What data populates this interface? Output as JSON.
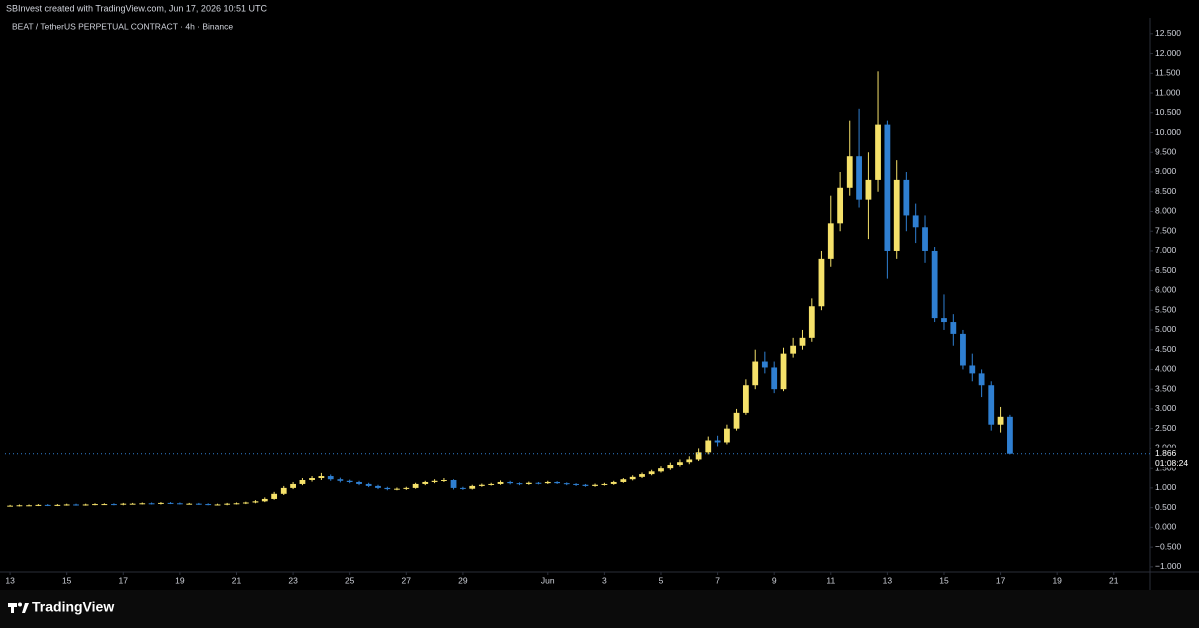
{
  "header": {
    "credit": "SBInvest created with TradingView.com, Jun 17, 2026 10:51 UTC"
  },
  "footer": {
    "brand": "TradingView"
  },
  "chart_data": {
    "type": "candlestick",
    "title": "BEAT / TetherUS PERPETUAL CONTRACT · 4h · Binance",
    "up_color": "#f5e16a",
    "down_color": "#2f7fd1",
    "x": [
      0,
      0.33,
      0.67,
      1,
      1.33,
      1.67,
      2,
      2.33,
      2.67,
      3,
      3.33,
      3.67,
      4,
      4.33,
      4.67,
      5,
      5.33,
      5.67,
      6,
      6.33,
      6.67,
      7,
      7.33,
      7.67,
      8,
      8.33,
      8.67,
      9,
      9.33,
      9.67,
      10,
      10.33,
      10.67,
      11,
      11.33,
      11.67,
      12,
      12.33,
      12.67,
      13,
      13.33,
      13.67,
      14,
      14.33,
      14.67,
      15,
      15.33,
      15.67,
      16,
      16.33,
      16.67,
      17,
      17.33,
      17.67,
      18,
      18.33,
      18.67,
      19,
      19.33,
      19.67,
      20,
      20.33,
      20.67,
      21,
      21.33,
      21.67,
      22,
      22.33,
      22.67,
      23,
      23.33,
      23.67,
      24,
      24.33,
      24.67,
      25,
      25.33,
      25.67,
      26,
      26.33,
      26.67,
      27,
      27.33,
      27.67,
      28,
      28.33,
      28.67,
      29,
      29.33,
      29.67,
      30,
      30.33,
      30.67,
      31,
      31.33,
      31.67,
      32,
      32.33,
      32.67,
      33,
      33.33,
      33.67,
      34,
      34.33,
      34.67,
      35,
      35.33
    ],
    "open": [
      0.55,
      0.55,
      0.56,
      0.56,
      0.57,
      0.56,
      0.57,
      0.58,
      0.57,
      0.58,
      0.59,
      0.59,
      0.58,
      0.6,
      0.6,
      0.61,
      0.6,
      0.62,
      0.61,
      0.6,
      0.6,
      0.59,
      0.58,
      0.58,
      0.6,
      0.61,
      0.63,
      0.66,
      0.72,
      0.85,
      1.0,
      1.1,
      1.2,
      1.25,
      1.3,
      1.22,
      1.18,
      1.15,
      1.1,
      1.05,
      1.0,
      0.97,
      0.98,
      1.0,
      1.1,
      1.15,
      1.18,
      1.2,
      1.0,
      0.98,
      1.05,
      1.08,
      1.1,
      1.15,
      1.12,
      1.1,
      1.13,
      1.12,
      1.15,
      1.12,
      1.1,
      1.08,
      1.05,
      1.08,
      1.1,
      1.15,
      1.22,
      1.28,
      1.35,
      1.42,
      1.5,
      1.58,
      1.65,
      1.72,
      1.9,
      2.2,
      2.15,
      2.5,
      2.9,
      3.6,
      4.2,
      4.05,
      3.5,
      4.4,
      4.6,
      4.8,
      5.6,
      6.8,
      7.7,
      8.6,
      9.4,
      8.3,
      8.8,
      10.2,
      7.0,
      8.8,
      7.9,
      7.6,
      7.0,
      5.3,
      5.2,
      4.9,
      4.1,
      3.9,
      3.6,
      2.6,
      2.8
    ],
    "high": [
      0.57,
      0.58,
      0.58,
      0.59,
      0.59,
      0.59,
      0.6,
      0.6,
      0.6,
      0.61,
      0.61,
      0.61,
      0.62,
      0.62,
      0.63,
      0.63,
      0.64,
      0.64,
      0.63,
      0.62,
      0.62,
      0.61,
      0.6,
      0.62,
      0.63,
      0.65,
      0.69,
      0.76,
      0.9,
      1.05,
      1.15,
      1.25,
      1.3,
      1.38,
      1.34,
      1.26,
      1.21,
      1.18,
      1.13,
      1.08,
      1.03,
      1.01,
      1.03,
      1.13,
      1.18,
      1.22,
      1.25,
      1.22,
      1.03,
      1.08,
      1.11,
      1.13,
      1.19,
      1.18,
      1.14,
      1.16,
      1.15,
      1.18,
      1.17,
      1.14,
      1.12,
      1.1,
      1.11,
      1.13,
      1.18,
      1.25,
      1.32,
      1.39,
      1.46,
      1.55,
      1.64,
      1.72,
      1.8,
      2.0,
      2.3,
      2.32,
      2.6,
      3.0,
      3.75,
      4.5,
      4.45,
      4.2,
      4.55,
      4.8,
      5.0,
      5.8,
      7.0,
      8.4,
      9.0,
      10.3,
      10.6,
      9.5,
      11.55,
      10.3,
      9.3,
      9.0,
      8.2,
      7.9,
      7.1,
      5.9,
      5.4,
      5.0,
      4.4,
      4.0,
      3.7,
      3.05,
      2.85
    ],
    "low": [
      0.53,
      0.53,
      0.54,
      0.54,
      0.54,
      0.54,
      0.55,
      0.55,
      0.55,
      0.56,
      0.57,
      0.56,
      0.56,
      0.58,
      0.58,
      0.58,
      0.58,
      0.59,
      0.58,
      0.58,
      0.57,
      0.56,
      0.56,
      0.56,
      0.58,
      0.59,
      0.61,
      0.64,
      0.7,
      0.82,
      0.97,
      1.07,
      1.16,
      1.2,
      1.18,
      1.14,
      1.12,
      1.07,
      1.02,
      0.97,
      0.94,
      0.94,
      0.95,
      0.98,
      1.07,
      1.12,
      1.15,
      0.96,
      0.95,
      0.96,
      1.03,
      1.06,
      1.08,
      1.09,
      1.07,
      1.08,
      1.09,
      1.1,
      1.1,
      1.07,
      1.05,
      1.03,
      1.03,
      1.06,
      1.08,
      1.13,
      1.19,
      1.25,
      1.32,
      1.39,
      1.46,
      1.54,
      1.6,
      1.68,
      1.85,
      2.05,
      2.1,
      2.45,
      2.85,
      3.5,
      3.9,
      3.4,
      3.45,
      4.3,
      4.5,
      4.7,
      5.5,
      6.6,
      7.5,
      8.4,
      8.1,
      7.3,
      8.5,
      6.3,
      6.8,
      7.5,
      7.2,
      6.7,
      5.2,
      5.0,
      4.6,
      4.0,
      3.7,
      3.3,
      2.45,
      2.4,
      1.85
    ],
    "close": [
      0.55,
      0.56,
      0.56,
      0.57,
      0.56,
      0.57,
      0.58,
      0.57,
      0.58,
      0.59,
      0.59,
      0.58,
      0.6,
      0.6,
      0.61,
      0.6,
      0.62,
      0.61,
      0.6,
      0.6,
      0.59,
      0.58,
      0.58,
      0.6,
      0.61,
      0.63,
      0.66,
      0.72,
      0.85,
      1.0,
      1.1,
      1.2,
      1.25,
      1.3,
      1.22,
      1.18,
      1.15,
      1.1,
      1.05,
      1.0,
      0.97,
      0.98,
      1.0,
      1.1,
      1.15,
      1.18,
      1.2,
      1.0,
      0.98,
      1.05,
      1.08,
      1.1,
      1.15,
      1.12,
      1.1,
      1.13,
      1.12,
      1.15,
      1.12,
      1.1,
      1.08,
      1.05,
      1.08,
      1.1,
      1.15,
      1.22,
      1.28,
      1.35,
      1.42,
      1.5,
      1.58,
      1.65,
      1.72,
      1.9,
      2.2,
      2.15,
      2.5,
      2.9,
      3.6,
      4.2,
      4.05,
      3.5,
      4.4,
      4.6,
      4.8,
      5.6,
      6.8,
      7.7,
      8.6,
      9.4,
      8.3,
      8.8,
      10.2,
      7.0,
      8.8,
      7.9,
      7.6,
      7.0,
      5.3,
      5.2,
      4.9,
      4.1,
      3.9,
      3.6,
      2.6,
      2.8,
      1.866
    ],
    "last_price": 1.866,
    "countdown": "01:08:24",
    "xlim": [
      -0.18,
      40.28
    ],
    "xticks": [
      {
        "value": 0,
        "label": "13"
      },
      {
        "value": 2,
        "label": "15"
      },
      {
        "value": 4,
        "label": "17"
      },
      {
        "value": 6,
        "label": "19"
      },
      {
        "value": 8,
        "label": "21"
      },
      {
        "value": 10,
        "label": "23"
      },
      {
        "value": 12,
        "label": "25"
      },
      {
        "value": 14,
        "label": "27"
      },
      {
        "value": 16,
        "label": "29"
      },
      {
        "value": 19,
        "label": "Jun"
      },
      {
        "value": 21,
        "label": "3"
      },
      {
        "value": 23,
        "label": "5"
      },
      {
        "value": 25,
        "label": "7"
      },
      {
        "value": 27,
        "label": "9"
      },
      {
        "value": 29,
        "label": "11"
      },
      {
        "value": 31,
        "label": "13"
      },
      {
        "value": 33,
        "label": "15"
      },
      {
        "value": 35,
        "label": "17"
      },
      {
        "value": 37,
        "label": "19"
      },
      {
        "value": 39,
        "label": "21"
      }
    ],
    "ylim": [
      -1.13,
      12.9
    ],
    "yticks": [
      {
        "value": 12.5,
        "label": "12.500"
      },
      {
        "value": 12,
        "label": "12.000"
      },
      {
        "value": 11.5,
        "label": "11.500"
      },
      {
        "value": 11,
        "label": "11.000"
      },
      {
        "value": 10.5,
        "label": "10.500"
      },
      {
        "value": 10,
        "label": "10.000"
      },
      {
        "value": 9.5,
        "label": "9.500"
      },
      {
        "value": 9,
        "label": "9.000"
      },
      {
        "value": 8.5,
        "label": "8.500"
      },
      {
        "value": 8,
        "label": "8.000"
      },
      {
        "value": 7.5,
        "label": "7.500"
      },
      {
        "value": 7,
        "label": "7.000"
      },
      {
        "value": 6.5,
        "label": "6.500"
      },
      {
        "value": 6,
        "label": "6.000"
      },
      {
        "value": 5.5,
        "label": "5.500"
      },
      {
        "value": 5,
        "label": "5.000"
      },
      {
        "value": 4.5,
        "label": "4.500"
      },
      {
        "value": 4,
        "label": "4.000"
      },
      {
        "value": 3.5,
        "label": "3.500"
      },
      {
        "value": 3,
        "label": "3.000"
      },
      {
        "value": 2.5,
        "label": "2.500"
      },
      {
        "value": 2,
        "label": "2.000"
      },
      {
        "value": 1.5,
        "label": "1.500"
      },
      {
        "value": 1,
        "label": "1.000"
      },
      {
        "value": 0.5,
        "label": "0.500"
      },
      {
        "value": 0,
        "label": "0.000"
      },
      {
        "value": -0.5,
        "label": "−0.500"
      },
      {
        "value": -1,
        "label": "−1.000"
      }
    ]
  }
}
